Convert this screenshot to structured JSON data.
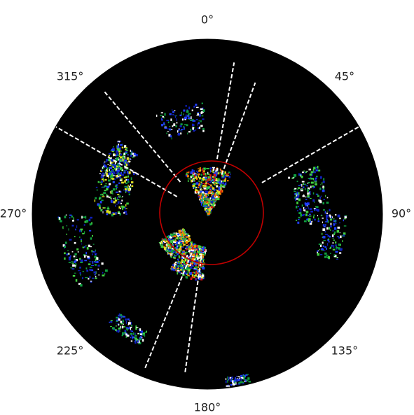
{
  "chart_data": {
    "type": "polar",
    "theta_direction": "clockwise",
    "theta_zero": "top",
    "xticks": [
      {
        "value": 0,
        "label": "0°"
      },
      {
        "value": 45,
        "label": "45°"
      },
      {
        "value": 90,
        "label": "90°"
      },
      {
        "value": 135,
        "label": "135°"
      },
      {
        "value": 180,
        "label": "180°"
      },
      {
        "value": 225,
        "label": "225°"
      },
      {
        "value": 270,
        "label": "270°"
      },
      {
        "value": 315,
        "label": "315°"
      }
    ]
  }
}
